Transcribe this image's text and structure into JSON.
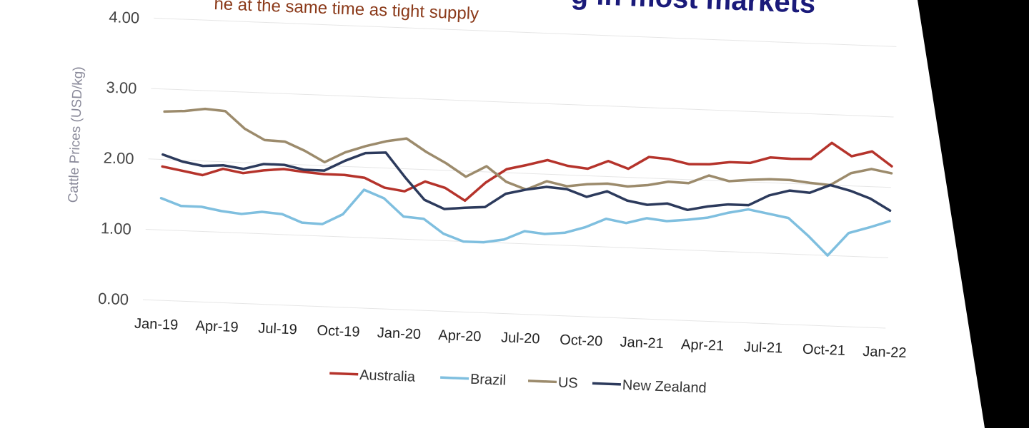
{
  "headline": "g in most markets",
  "subtitle": "he at the same time as tight supply",
  "chart_data": {
    "type": "line",
    "ylabel": "Cattle Prices (USD/kg)",
    "ylim": [
      0,
      4
    ],
    "yticks": [
      "0.00",
      "1.00",
      "2.00",
      "3.00",
      "4.00"
    ],
    "xticks": [
      "Jan-19",
      "Apr-19",
      "Jul-19",
      "Oct-19",
      "Jan-20",
      "Apr-20",
      "Jul-20",
      "Oct-20",
      "Jan-21",
      "Apr-21",
      "Jul-21",
      "Oct-21",
      "Jan-22"
    ],
    "grid": true,
    "legend_position": "bottom",
    "series": [
      {
        "name": "Australia",
        "color": "#b5332b",
        "values": [
          1.9,
          1.85,
          1.8,
          1.9,
          1.85,
          1.9,
          1.93,
          1.9,
          1.88,
          1.88,
          1.85,
          1.72,
          1.68,
          1.83,
          1.75,
          1.58,
          1.85,
          2.05,
          2.12,
          2.2,
          2.13,
          2.1,
          2.22,
          2.12,
          2.3,
          2.28,
          2.22,
          2.23,
          2.27,
          2.27,
          2.36,
          2.35,
          2.36,
          2.6,
          2.42,
          2.5,
          2.3
        ]
      },
      {
        "name": "Brazil",
        "color": "#7fbfdf",
        "values": [
          1.45,
          1.35,
          1.35,
          1.3,
          1.27,
          1.31,
          1.29,
          1.18,
          1.17,
          1.32,
          1.68,
          1.57,
          1.32,
          1.3,
          1.1,
          1.0,
          1.0,
          1.05,
          1.18,
          1.15,
          1.18,
          1.27,
          1.4,
          1.35,
          1.43,
          1.4,
          1.43,
          1.47,
          1.55,
          1.61,
          1.56,
          1.51,
          1.27,
          1.0,
          1.33,
          1.42,
          1.52
        ]
      },
      {
        "name": "US",
        "color": "#9c8b6c",
        "values": [
          2.68,
          2.7,
          2.74,
          2.72,
          2.48,
          2.33,
          2.32,
          2.2,
          2.05,
          2.2,
          2.3,
          2.38,
          2.43,
          2.25,
          2.1,
          1.92,
          2.08,
          1.87,
          1.77,
          1.9,
          1.84,
          1.88,
          1.9,
          1.87,
          1.9,
          1.96,
          1.95,
          2.07,
          2.0,
          2.03,
          2.05,
          2.05,
          2.02,
          2.0,
          2.18,
          2.25,
          2.2
        ]
      },
      {
        "name": "New Zealand",
        "color": "#2c3a5c",
        "values": [
          2.07,
          1.98,
          1.93,
          1.95,
          1.91,
          1.99,
          1.99,
          1.93,
          1.93,
          2.08,
          2.2,
          2.22,
          1.88,
          1.57,
          1.45,
          1.48,
          1.5,
          1.7,
          1.77,
          1.82,
          1.8,
          1.7,
          1.79,
          1.67,
          1.62,
          1.65,
          1.57,
          1.63,
          1.67,
          1.67,
          1.82,
          1.9,
          1.88,
          2.0,
          1.93,
          1.83,
          1.67
        ]
      }
    ]
  }
}
